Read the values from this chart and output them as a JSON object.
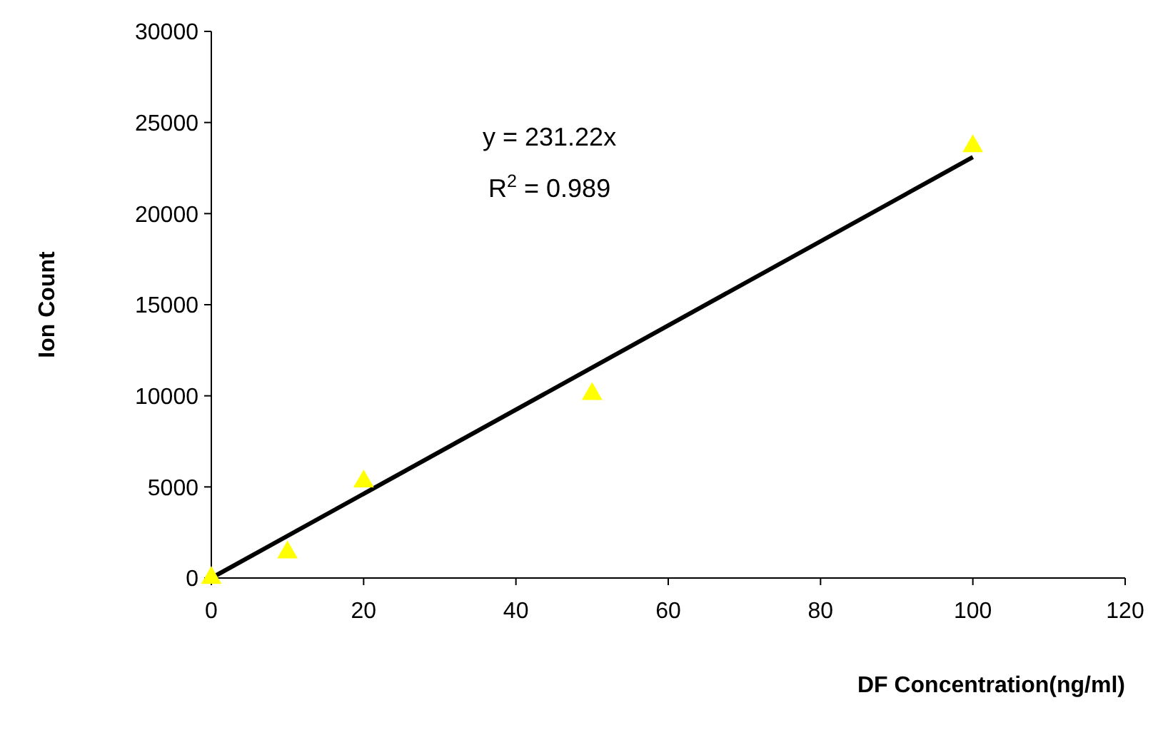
{
  "chart_data": {
    "type": "scatter",
    "xlabel": "DF Concentration(ng/ml)",
    "ylabel": "Ion Count",
    "xlim": [
      0,
      120
    ],
    "xticks": [
      0,
      20,
      40,
      60,
      80,
      100,
      120
    ],
    "ylim": [
      0,
      30000
    ],
    "yticks": [
      0,
      5000,
      10000,
      15000,
      20000,
      25000,
      30000
    ],
    "grid": false,
    "annotations": [
      "y = 231.22x",
      "R$^{2}$ = 0.989"
    ],
    "series": [
      {
        "color": "#ffff00",
        "marker": "triangle",
        "x": [
          0,
          10,
          20,
          50,
          100
        ],
        "values": [
          0,
          1400,
          5300,
          10100,
          23700
        ]
      },
      {
        "type": "line",
        "color": "#000000",
        "line_style": "solid",
        "x": [
          0,
          100
        ],
        "values": [
          0,
          23100
        ]
      }
    ]
  }
}
